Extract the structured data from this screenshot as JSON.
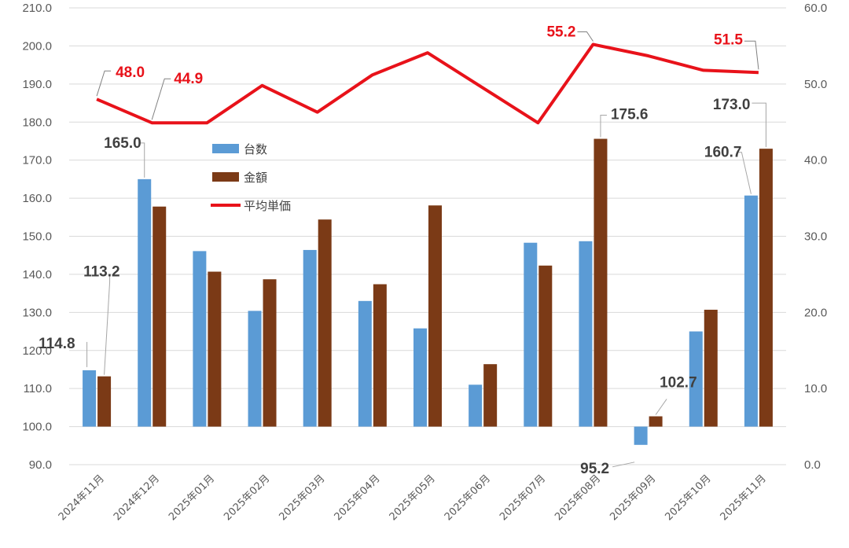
{
  "chart_data": {
    "type": "bar",
    "categories": [
      "2024年11月",
      "2024年12月",
      "2025年01月",
      "2025年02月",
      "2025年03月",
      "2025年04月",
      "2025年05月",
      "2025年06月",
      "2025年07月",
      "2025年08月",
      "2025年09月",
      "2025年10月",
      "2025年11月"
    ],
    "series": [
      {
        "name": "台数",
        "type": "bar",
        "axis": "left",
        "color": "#5b9bd5",
        "values": [
          114.8,
          165.0,
          146.1,
          130.4,
          146.4,
          133.0,
          125.8,
          111.0,
          148.3,
          148.7,
          95.2,
          125.0,
          160.7
        ]
      },
      {
        "name": "金額",
        "type": "bar",
        "axis": "left",
        "color": "#7b3a16",
        "values": [
          113.2,
          157.8,
          140.7,
          138.7,
          154.4,
          137.4,
          158.1,
          116.4,
          142.3,
          175.6,
          102.7,
          130.7,
          173.0
        ]
      },
      {
        "name": "平均単価",
        "type": "line",
        "axis": "right",
        "color": "#e8121a",
        "values": [
          48.0,
          44.9,
          44.9,
          49.8,
          46.3,
          51.2,
          54.1,
          49.5,
          44.9,
          55.2,
          53.7,
          51.8,
          51.5
        ]
      }
    ],
    "y_left": {
      "min": 90,
      "max": 210,
      "step": 10,
      "ticks": [
        "90.0",
        "100.0",
        "110.0",
        "120.0",
        "130.0",
        "140.0",
        "150.0",
        "160.0",
        "170.0",
        "180.0",
        "190.0",
        "200.0",
        "210.0"
      ]
    },
    "y_right": {
      "min": 0,
      "max": 60,
      "step": 10,
      "ticks": [
        "0.0",
        "10.0",
        "20.0",
        "30.0",
        "40.0",
        "50.0",
        "60.0"
      ]
    },
    "bar_baseline": 100,
    "annotations": [
      {
        "series": 0,
        "index": 0,
        "text": "114.8"
      },
      {
        "series": 1,
        "index": 0,
        "text": "113.2"
      },
      {
        "series": 0,
        "index": 1,
        "text": "165.0"
      },
      {
        "series": 1,
        "index": 9,
        "text": "175.6"
      },
      {
        "series": 0,
        "index": 10,
        "text": "95.2"
      },
      {
        "series": 1,
        "index": 10,
        "text": "102.7"
      },
      {
        "series": 0,
        "index": 12,
        "text": "160.7"
      },
      {
        "series": 1,
        "index": 12,
        "text": "173.0"
      },
      {
        "series": 2,
        "index": 0,
        "text": "48.0"
      },
      {
        "series": 2,
        "index": 1,
        "text": "44.9"
      },
      {
        "series": 2,
        "index": 9,
        "text": "55.2"
      },
      {
        "series": 2,
        "index": 12,
        "text": "51.5"
      }
    ],
    "legend": {
      "placement": "inside-upper-left",
      "items": [
        "台数",
        "金額",
        "平均単価"
      ]
    },
    "grid": true
  }
}
